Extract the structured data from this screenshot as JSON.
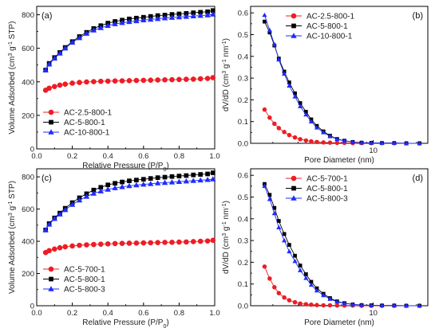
{
  "chart_data": [
    {
      "id": "a",
      "type": "line",
      "panel_label": "(a)",
      "xlabel": "Relative Pressure (P/P0)",
      "xlabel_parts": [
        "Relative Pressure (P/P",
        "0",
        ")"
      ],
      "ylabel": "Volume Adsorbed (cm3 g-1 STP)",
      "ylabel_parts": [
        "Volume Adsorbed (cm",
        "3",
        " g",
        "-1",
        " STP)"
      ],
      "xlim": [
        0,
        1
      ],
      "ylim": [
        0,
        850
      ],
      "xticks": [
        0.0,
        0.2,
        0.4,
        0.6,
        0.8,
        1.0
      ],
      "xtick_labels": [
        "0.0",
        "0.2",
        "0.4",
        "0.6",
        "0.8",
        "1.0"
      ],
      "yticks": [
        0,
        200,
        400,
        600,
        800
      ],
      "ytick_labels": [
        "0",
        "200",
        "400",
        "600",
        "800"
      ],
      "legend_position": "bottom-left",
      "series": [
        {
          "name": "AC-2.5-800-1",
          "color": "#ee1c24",
          "marker": "circle",
          "x": [
            0.05,
            0.07,
            0.1,
            0.13,
            0.16,
            0.2,
            0.24,
            0.28,
            0.32,
            0.36,
            0.4,
            0.44,
            0.48,
            0.52,
            0.56,
            0.6,
            0.64,
            0.68,
            0.72,
            0.76,
            0.8,
            0.84,
            0.88,
            0.92,
            0.96,
            0.99
          ],
          "y": [
            350,
            362,
            372,
            380,
            386,
            392,
            396,
            399,
            401,
            403,
            404,
            405,
            406,
            407,
            408,
            409,
            410,
            411,
            412,
            413,
            414,
            415,
            416,
            418,
            420,
            425
          ]
        },
        {
          "name": "AC-5-800-1",
          "color": "#000000",
          "marker": "square",
          "x": [
            0.05,
            0.07,
            0.1,
            0.13,
            0.16,
            0.2,
            0.24,
            0.28,
            0.32,
            0.36,
            0.4,
            0.44,
            0.48,
            0.52,
            0.56,
            0.6,
            0.64,
            0.68,
            0.72,
            0.76,
            0.8,
            0.84,
            0.88,
            0.92,
            0.96,
            0.99
          ],
          "y": [
            470,
            510,
            545,
            575,
            605,
            640,
            670,
            695,
            718,
            735,
            750,
            760,
            768,
            775,
            780,
            785,
            790,
            795,
            798,
            802,
            805,
            808,
            812,
            815,
            818,
            825
          ]
        },
        {
          "name": "AC-10-800-1",
          "color": "#1f2bff",
          "marker": "triangle",
          "x": [
            0.05,
            0.07,
            0.1,
            0.13,
            0.16,
            0.2,
            0.24,
            0.28,
            0.32,
            0.36,
            0.4,
            0.44,
            0.48,
            0.52,
            0.56,
            0.6,
            0.64,
            0.68,
            0.72,
            0.76,
            0.8,
            0.84,
            0.88,
            0.92,
            0.96,
            0.99
          ],
          "y": [
            470,
            505,
            540,
            570,
            600,
            635,
            662,
            688,
            708,
            722,
            735,
            745,
            752,
            758,
            763,
            768,
            772,
            776,
            780,
            783,
            786,
            789,
            792,
            795,
            798,
            803
          ]
        }
      ]
    },
    {
      "id": "b",
      "type": "line",
      "panel_label": "(b)",
      "xlabel": "Pore Diameter (nm)",
      "ylabel": "dV/dD (cm3 g-1 nm-1)",
      "ylabel_parts": [
        "dV/dD (cm",
        "3",
        " g",
        "-1",
        " nm",
        "-1",
        ")"
      ],
      "x_scale": "log",
      "xlim": [
        1.4,
        24
      ],
      "ylim": [
        0,
        0.63
      ],
      "xticks": [
        10
      ],
      "xtick_labels": [
        "10"
      ],
      "yticks": [
        0.0,
        0.1,
        0.2,
        0.3,
        0.4,
        0.5,
        0.6
      ],
      "ytick_labels": [
        "0.0",
        "0.1",
        "0.2",
        "0.3",
        "0.4",
        "0.5",
        "0.6"
      ],
      "legend_position": "top-center",
      "series": [
        {
          "name": "AC-2.5-800-1",
          "color": "#ee1c24",
          "marker": "circle",
          "x": [
            1.75,
            1.9,
            2.05,
            2.2,
            2.4,
            2.6,
            2.85,
            3.1,
            3.4,
            3.7,
            4.05,
            4.5,
            5.0,
            5.6,
            6.3,
            7.2,
            8.3,
            9.7,
            11.5,
            14,
            17,
            21
          ],
          "y": [
            0.155,
            0.118,
            0.09,
            0.07,
            0.052,
            0.038,
            0.027,
            0.019,
            0.013,
            0.009,
            0.006,
            0.004,
            0.003,
            0.002,
            0.002,
            0.001,
            0.001,
            0.001,
            0.001,
            0.001,
            0.0,
            0.0
          ]
        },
        {
          "name": "AC-5-800-1",
          "color": "#000000",
          "marker": "square",
          "x": [
            1.75,
            1.9,
            2.05,
            2.2,
            2.4,
            2.6,
            2.85,
            3.1,
            3.4,
            3.7,
            4.05,
            4.5,
            5.0,
            5.6,
            6.3,
            7.2,
            8.3,
            9.7,
            11.5,
            14,
            17,
            21
          ],
          "y": [
            0.56,
            0.51,
            0.45,
            0.39,
            0.33,
            0.28,
            0.23,
            0.185,
            0.145,
            0.11,
            0.08,
            0.055,
            0.035,
            0.02,
            0.012,
            0.006,
            0.003,
            0.002,
            0.001,
            0.001,
            0.0,
            0.0
          ]
        },
        {
          "name": "AC-10-800-1",
          "color": "#1f2bff",
          "marker": "triangle",
          "x": [
            1.75,
            1.9,
            2.05,
            2.2,
            2.4,
            2.6,
            2.85,
            3.1,
            3.4,
            3.7,
            4.05,
            4.5,
            5.0,
            5.6,
            6.3,
            7.2,
            8.3,
            9.7,
            11.5,
            14,
            17,
            21
          ],
          "y": [
            0.59,
            0.52,
            0.455,
            0.385,
            0.32,
            0.265,
            0.215,
            0.17,
            0.132,
            0.1,
            0.072,
            0.05,
            0.032,
            0.019,
            0.011,
            0.006,
            0.003,
            0.002,
            0.001,
            0.001,
            0.0,
            0.0
          ]
        }
      ]
    },
    {
      "id": "c",
      "type": "line",
      "panel_label": "(c)",
      "xlabel": "Relative Pressure (P/P0)",
      "xlabel_parts": [
        "Relative Pressure (P/P",
        "0",
        ")"
      ],
      "ylabel": "Volume Adsorbed (cm3 g-1 STP)",
      "ylabel_parts": [
        "Volume Adsorbed (cm",
        "3",
        " g",
        "-1",
        " STP)"
      ],
      "xlim": [
        0,
        1
      ],
      "ylim": [
        0,
        850
      ],
      "xticks": [
        0.0,
        0.2,
        0.4,
        0.6,
        0.8,
        1.0
      ],
      "xtick_labels": [
        "0.0",
        "0.2",
        "0.4",
        "0.6",
        "0.8",
        "1.0"
      ],
      "yticks": [
        0,
        200,
        400,
        600,
        800
      ],
      "ytick_labels": [
        "0",
        "200",
        "400",
        "600",
        "800"
      ],
      "legend_position": "bottom-left",
      "series": [
        {
          "name": "AC-5-700-1",
          "color": "#ee1c24",
          "marker": "circle",
          "x": [
            0.05,
            0.07,
            0.1,
            0.13,
            0.16,
            0.2,
            0.24,
            0.28,
            0.32,
            0.36,
            0.4,
            0.44,
            0.48,
            0.52,
            0.56,
            0.6,
            0.64,
            0.68,
            0.72,
            0.76,
            0.8,
            0.84,
            0.88,
            0.92,
            0.96,
            0.99
          ],
          "y": [
            330,
            342,
            352,
            360,
            366,
            371,
            375,
            378,
            380,
            382,
            384,
            386,
            387,
            388,
            389,
            390,
            391,
            392,
            393,
            394,
            395,
            396,
            398,
            400,
            402,
            406
          ]
        },
        {
          "name": "AC-5-800-1",
          "color": "#000000",
          "marker": "square",
          "x": [
            0.05,
            0.07,
            0.1,
            0.13,
            0.16,
            0.2,
            0.24,
            0.28,
            0.32,
            0.36,
            0.4,
            0.44,
            0.48,
            0.52,
            0.56,
            0.6,
            0.64,
            0.68,
            0.72,
            0.76,
            0.8,
            0.84,
            0.88,
            0.92,
            0.96,
            0.99
          ],
          "y": [
            470,
            510,
            545,
            575,
            605,
            640,
            670,
            695,
            718,
            735,
            750,
            760,
            768,
            775,
            780,
            785,
            790,
            795,
            798,
            802,
            805,
            808,
            812,
            815,
            818,
            825
          ]
        },
        {
          "name": "AC-5-800-3",
          "color": "#1f2bff",
          "marker": "triangle",
          "x": [
            0.05,
            0.07,
            0.1,
            0.13,
            0.16,
            0.2,
            0.24,
            0.28,
            0.32,
            0.36,
            0.4,
            0.44,
            0.48,
            0.52,
            0.56,
            0.6,
            0.64,
            0.68,
            0.72,
            0.76,
            0.8,
            0.84,
            0.88,
            0.92,
            0.96,
            0.99
          ],
          "y": [
            470,
            505,
            540,
            568,
            595,
            628,
            655,
            678,
            697,
            711,
            722,
            731,
            738,
            744,
            749,
            753,
            757,
            761,
            764,
            767,
            770,
            773,
            776,
            779,
            782,
            786
          ]
        }
      ]
    },
    {
      "id": "d",
      "type": "line",
      "panel_label": "(d)",
      "xlabel": "Pore Diameter (nm)",
      "ylabel": "dV/dD (cm3 g-1 nm-1)",
      "ylabel_parts": [
        "dV/dD (cm",
        "3",
        " g",
        "-1",
        " nm",
        "-1",
        ")"
      ],
      "x_scale": "log",
      "xlim": [
        1.4,
        24
      ],
      "ylim": [
        0,
        0.63
      ],
      "xticks": [
        10
      ],
      "xtick_labels": [
        "10"
      ],
      "yticks": [
        0.0,
        0.1,
        0.2,
        0.3,
        0.4,
        0.5,
        0.6
      ],
      "ytick_labels": [
        "0.0",
        "0.1",
        "0.2",
        "0.3",
        "0.4",
        "0.5",
        "0.6"
      ],
      "legend_position": "top-center",
      "series": [
        {
          "name": "AC-5-700-1",
          "color": "#ee1c24",
          "marker": "circle",
          "x": [
            1.75,
            1.9,
            2.05,
            2.2,
            2.4,
            2.6,
            2.85,
            3.1,
            3.4,
            3.7,
            4.05,
            4.5,
            5.0,
            5.6,
            6.3,
            7.2,
            8.3,
            9.7,
            11.5,
            14,
            17,
            21
          ],
          "y": [
            0.18,
            0.125,
            0.085,
            0.058,
            0.038,
            0.025,
            0.016,
            0.01,
            0.007,
            0.005,
            0.003,
            0.002,
            0.002,
            0.001,
            0.001,
            0.001,
            0.0,
            0.0,
            0.0,
            0.0,
            0.0,
            0.0
          ]
        },
        {
          "name": "AC-5-800-1",
          "color": "#000000",
          "marker": "square",
          "x": [
            1.75,
            1.9,
            2.05,
            2.2,
            2.4,
            2.6,
            2.85,
            3.1,
            3.4,
            3.7,
            4.05,
            4.5,
            5.0,
            5.6,
            6.3,
            7.2,
            8.3,
            9.7,
            11.5,
            14,
            17,
            21
          ],
          "y": [
            0.56,
            0.51,
            0.45,
            0.39,
            0.33,
            0.28,
            0.23,
            0.185,
            0.145,
            0.11,
            0.08,
            0.055,
            0.035,
            0.02,
            0.012,
            0.006,
            0.003,
            0.002,
            0.001,
            0.001,
            0.0,
            0.0
          ]
        },
        {
          "name": "AC-5-800-3",
          "color": "#1f2bff",
          "marker": "triangle",
          "x": [
            1.75,
            1.9,
            2.05,
            2.2,
            2.4,
            2.6,
            2.85,
            3.1,
            3.4,
            3.7,
            4.05,
            4.5,
            5.0,
            5.6,
            6.3,
            7.2,
            8.3,
            9.7,
            11.5,
            14,
            17,
            21
          ],
          "y": [
            0.55,
            0.49,
            0.425,
            0.36,
            0.3,
            0.25,
            0.205,
            0.163,
            0.127,
            0.096,
            0.07,
            0.048,
            0.031,
            0.018,
            0.011,
            0.006,
            0.003,
            0.002,
            0.001,
            0.001,
            0.0,
            0.0
          ]
        }
      ]
    }
  ]
}
